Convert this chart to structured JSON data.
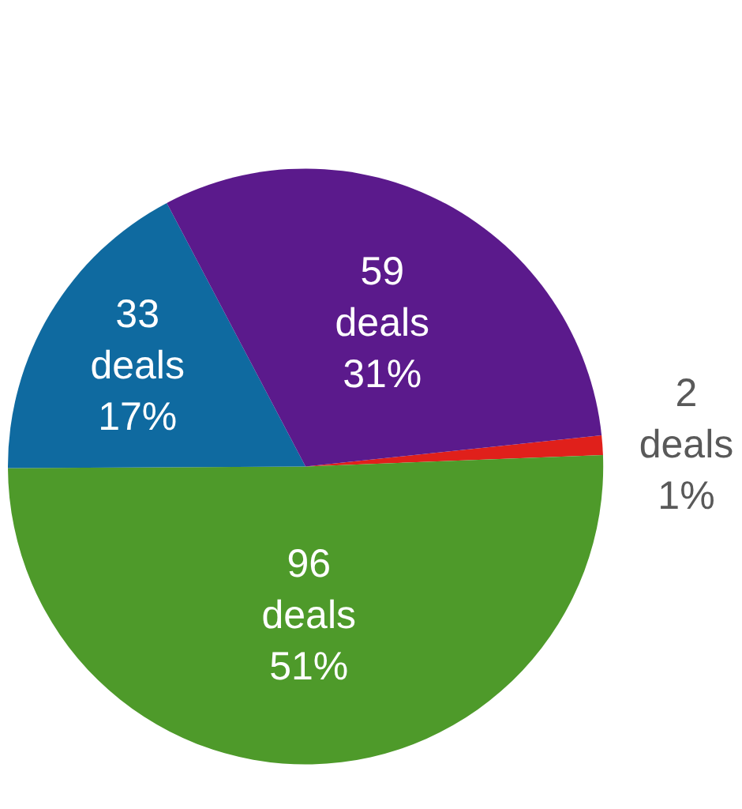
{
  "chart_data": {
    "type": "pie",
    "categories": [
      null,
      null,
      null,
      null
    ],
    "values": [
      2,
      96,
      33,
      59
    ],
    "colors": [
      "#e0201b",
      "#4e9a2a",
      "#0f6aa0",
      "#5b1a8c"
    ],
    "value_labels": [
      "2\ndeals\n1%",
      "96\ndeals\n51%",
      "33\ndeals\n17%",
      "59\ndeals\n31%"
    ],
    "legend": false
  }
}
